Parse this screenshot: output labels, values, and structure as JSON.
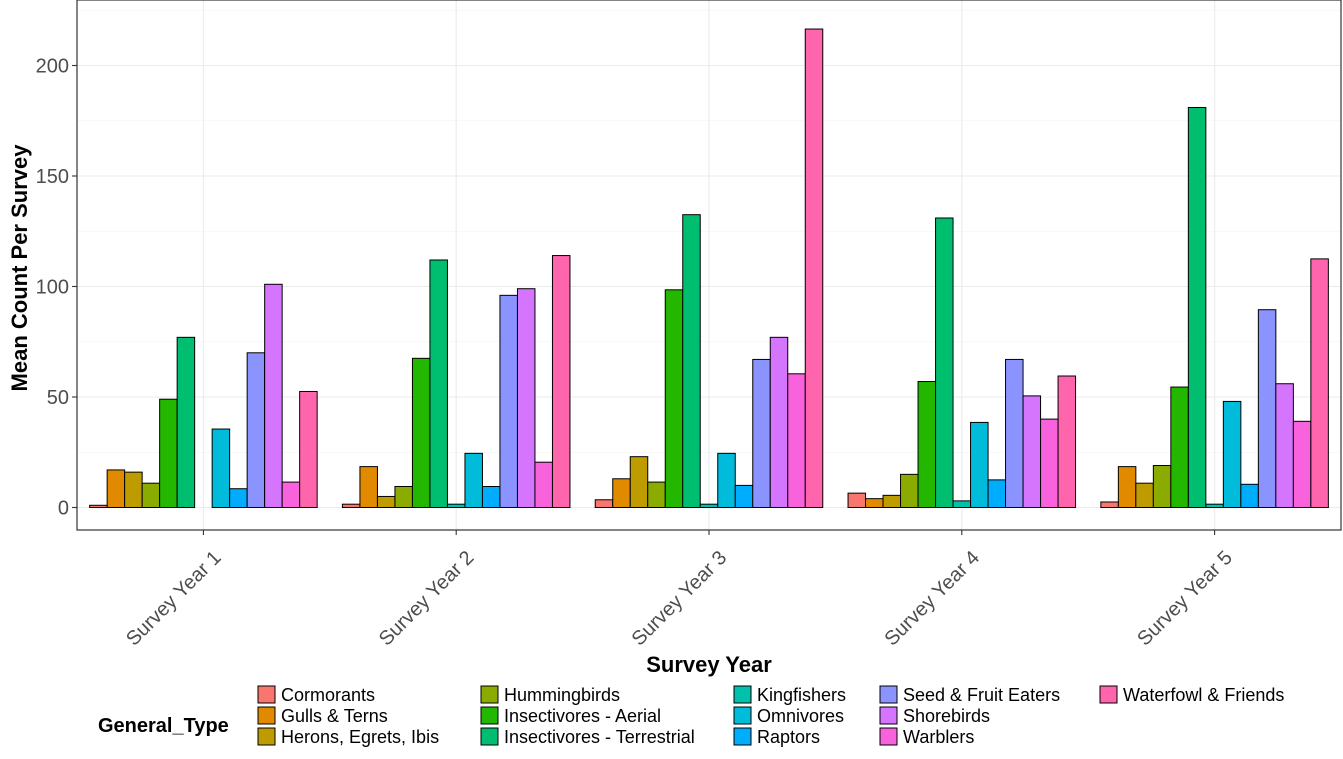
{
  "chart_data": {
    "type": "bar",
    "title": "",
    "xlabel": "Survey Year",
    "ylabel": "Mean Count Per Survey",
    "ylim": [
      -12,
      222
    ],
    "yticks": [
      0,
      50,
      100,
      150,
      200
    ],
    "grid": true,
    "legend_position": "bottom",
    "legend_title": "General_Type",
    "categories": [
      "Survey Year 1",
      "Survey Year 2",
      "Survey Year 3",
      "Survey Year 4",
      "Survey Year 5"
    ],
    "series": [
      {
        "name": "Cormorants",
        "color": "#F8766D",
        "values": [
          1,
          1.5,
          3.5,
          6.5,
          2.5
        ]
      },
      {
        "name": "Gulls & Terns",
        "color": "#E18A00",
        "values": [
          17,
          18.5,
          13,
          4,
          18.5
        ]
      },
      {
        "name": "Herons, Egrets, Ibis",
        "color": "#BE9C00",
        "values": [
          16,
          5,
          23,
          5.5,
          11
        ]
      },
      {
        "name": "Hummingbirds",
        "color": "#8CAB00",
        "values": [
          11,
          9.5,
          11.5,
          15,
          19
        ]
      },
      {
        "name": "Insectivores - Aerial",
        "color": "#24B700",
        "values": [
          49,
          67.5,
          98.5,
          57,
          54.5
        ]
      },
      {
        "name": "Insectivores - Terrestrial",
        "color": "#00BE70",
        "values": [
          77,
          112,
          132.5,
          131,
          181
        ]
      },
      {
        "name": "Kingfishers",
        "color": "#00C1AB",
        "values": [
          0,
          1.5,
          1.5,
          3,
          1.5
        ]
      },
      {
        "name": "Omnivores",
        "color": "#00BBDA",
        "values": [
          35.5,
          24.5,
          24.5,
          38.5,
          48
        ]
      },
      {
        "name": "Raptors",
        "color": "#00ACFC",
        "values": [
          8.5,
          9.5,
          10,
          12.5,
          10.5
        ]
      },
      {
        "name": "Seed & Fruit Eaters",
        "color": "#8B93FF",
        "values": [
          70,
          96,
          67,
          67,
          89.5
        ]
      },
      {
        "name": "Shorebirds",
        "color": "#D575FE",
        "values": [
          101,
          99,
          77,
          50.5,
          56
        ]
      },
      {
        "name": "Warblers",
        "color": "#F962DD",
        "values": [
          11.5,
          20.5,
          60.5,
          40,
          39
        ]
      },
      {
        "name": "Waterfowl & Friends",
        "color": "#FF65AC",
        "values": [
          52.5,
          114,
          216.5,
          59.5,
          112.5
        ]
      }
    ]
  }
}
